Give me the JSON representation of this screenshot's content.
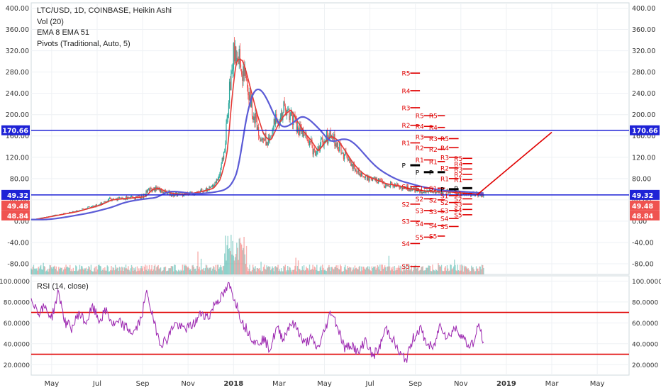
{
  "legend": {
    "symbol": "LTC/USD, 1D, COINBASE, Heikin Ashi",
    "vol": "Vol (20)",
    "ema": "EMA 8 EMA 51",
    "pivots": "Pivots (Traditional, Auto, 5)"
  },
  "rsi_label": "RSI (14, close)",
  "price_badges": {
    "left_blue_top": "170.66",
    "right_blue_top": "170.66",
    "left_blue_mid": "49.32",
    "right_blue_mid": "49.32",
    "left_red_1": "49.48",
    "right_red_1": "49.48",
    "left_red_2": "48.84",
    "right_red_2": "48.84"
  },
  "colors": {
    "up_candle": "#26a69a",
    "down_candle": "#ef5350",
    "ema_fast": "#e53935",
    "ema_slow": "#5b5bd6",
    "pivot_line": "#e00000",
    "pivot_pp": "#000000",
    "horizontal_line": "#1e22d6",
    "rsi_line": "#9c27b0",
    "rsi_band": "#e00000"
  },
  "chart_data": [
    {
      "type": "line",
      "pane": "price",
      "ylim": [
        -100,
        410
      ],
      "y_ticks": [
        "400.00",
        "360.00",
        "320.00",
        "280.00",
        "240.00",
        "200.00",
        "160.00",
        "120.00",
        "80.00",
        "40.00",
        "0.00",
        "-40.00",
        "-80.00"
      ],
      "y_tick_values": [
        400,
        360,
        320,
        280,
        240,
        200,
        160,
        120,
        80,
        40,
        0,
        -40,
        -80
      ],
      "x_ticks": [
        "May",
        "Jul",
        "Sep",
        "Nov",
        "2018",
        "Mar",
        "May",
        "Jul",
        "Sep",
        "Nov",
        "2019",
        "Mar",
        "May"
      ],
      "x_tick_months": [
        4,
        6,
        8,
        10,
        12,
        14,
        16,
        18,
        20,
        22,
        24,
        26,
        28
      ],
      "x_start_month": 3.1,
      "x_end_month": 29.4,
      "series": [
        {
          "values_monthly_approx": [
            [
              3.1,
              3
            ],
            [
              3.5,
              6
            ],
            [
              4,
              10
            ],
            [
              4.5,
              14
            ],
            [
              5,
              18
            ],
            [
              5.5,
              24
            ],
            [
              6,
              30
            ],
            [
              6.5,
              40
            ],
            [
              7,
              42
            ],
            [
              7.5,
              44
            ],
            [
              8,
              46
            ],
            [
              8.3,
              60
            ],
            [
              8.6,
              62
            ],
            [
              8.9,
              55
            ],
            [
              9.2,
              52
            ],
            [
              9.5,
              50
            ],
            [
              10,
              52
            ],
            [
              10.5,
              56
            ],
            [
              11,
              62
            ],
            [
              11.3,
              80
            ],
            [
              11.6,
              130
            ],
            [
              11.8,
              240
            ],
            [
              12,
              310
            ],
            [
              12.3,
              300
            ],
            [
              12.6,
              250
            ],
            [
              12.9,
              200
            ],
            [
              13.2,
              160
            ],
            [
              13.5,
              150
            ],
            [
              13.8,
              180
            ],
            [
              14.1,
              200
            ],
            [
              14.4,
              210
            ],
            [
              14.7,
              185
            ],
            [
              15,
              165
            ],
            [
              15.3,
              150
            ],
            [
              15.6,
              130
            ],
            [
              15.9,
              150
            ],
            [
              16.2,
              160
            ],
            [
              16.5,
              150
            ],
            [
              16.8,
              130
            ],
            [
              17.1,
              110
            ],
            [
              17.4,
              95
            ],
            [
              17.7,
              85
            ],
            [
              18,
              80
            ],
            [
              18.3,
              75
            ],
            [
              18.6,
              70
            ],
            [
              18.9,
              68
            ],
            [
              19.2,
              66
            ],
            [
              19.5,
              62
            ],
            [
              19.8,
              60
            ],
            [
              20.1,
              58
            ],
            [
              20.4,
              56
            ],
            [
              20.7,
              55
            ],
            [
              21,
              56
            ],
            [
              21.3,
              55
            ],
            [
              21.6,
              54
            ],
            [
              21.9,
              53
            ],
            [
              22.2,
              52
            ],
            [
              22.5,
              51
            ],
            [
              22.8,
              50
            ],
            [
              23.0,
              49.5
            ]
          ]
        }
      ],
      "horizontal_lines": [
        170.66,
        49.32
      ],
      "trendline": {
        "from": [
          22.7,
          49
        ],
        "to": [
          26.0,
          167
        ]
      }
    },
    {
      "type": "line",
      "pane": "rsi",
      "ylim": [
        10,
        105
      ],
      "y_ticks": [
        "100.0000",
        "80.0000",
        "60.0000",
        "40.0000",
        "20.0000"
      ],
      "y_tick_values": [
        100,
        80,
        60,
        40,
        20
      ],
      "bands": [
        70,
        30
      ],
      "series": [
        {
          "values_monthly_approx": [
            [
              3.1,
              85
            ],
            [
              3.4,
              70
            ],
            [
              3.7,
              75
            ],
            [
              4.0,
              65
            ],
            [
              4.3,
              90
            ],
            [
              4.6,
              60
            ],
            [
              4.9,
              55
            ],
            [
              5.2,
              70
            ],
            [
              5.5,
              60
            ],
            [
              5.8,
              75
            ],
            [
              6.1,
              62
            ],
            [
              6.4,
              72
            ],
            [
              6.7,
              58
            ],
            [
              7.0,
              60
            ],
            [
              7.3,
              55
            ],
            [
              7.6,
              50
            ],
            [
              7.9,
              62
            ],
            [
              8.2,
              90
            ],
            [
              8.5,
              60
            ],
            [
              8.8,
              40
            ],
            [
              9.1,
              45
            ],
            [
              9.4,
              60
            ],
            [
              9.7,
              55
            ],
            [
              10.0,
              55
            ],
            [
              10.3,
              60
            ],
            [
              10.6,
              70
            ],
            [
              10.9,
              65
            ],
            [
              11.2,
              80
            ],
            [
              11.5,
              85
            ],
            [
              11.8,
              96
            ],
            [
              12.1,
              80
            ],
            [
              12.4,
              60
            ],
            [
              12.7,
              50
            ],
            [
              13.0,
              40
            ],
            [
              13.3,
              45
            ],
            [
              13.6,
              35
            ],
            [
              13.9,
              55
            ],
            [
              14.2,
              45
            ],
            [
              14.5,
              60
            ],
            [
              14.8,
              55
            ],
            [
              15.1,
              40
            ],
            [
              15.4,
              45
            ],
            [
              15.7,
              35
            ],
            [
              16.0,
              52
            ],
            [
              16.3,
              72
            ],
            [
              16.6,
              55
            ],
            [
              16.9,
              35
            ],
            [
              17.2,
              40
            ],
            [
              17.5,
              30
            ],
            [
              17.8,
              45
            ],
            [
              18.1,
              28
            ],
            [
              18.4,
              35
            ],
            [
              18.7,
              55
            ],
            [
              19.0,
              45
            ],
            [
              19.3,
              30
            ],
            [
              19.6,
              25
            ],
            [
              19.9,
              45
            ],
            [
              20.2,
              55
            ],
            [
              20.5,
              40
            ],
            [
              20.8,
              35
            ],
            [
              21.1,
              60
            ],
            [
              21.4,
              45
            ],
            [
              21.7,
              55
            ],
            [
              22.0,
              50
            ],
            [
              22.3,
              38
            ],
            [
              22.6,
              42
            ],
            [
              22.8,
              60
            ],
            [
              23.0,
              38
            ]
          ]
        }
      ]
    }
  ],
  "pivots": {
    "group1": {
      "labels": [
        "R5",
        "R4",
        "R3",
        "R2",
        "R1",
        "P",
        "S1",
        "S2",
        "S3",
        "S4",
        "S5"
      ],
      "values": [
        278,
        245,
        213,
        180,
        147,
        105,
        65,
        32,
        0,
        -42,
        -85
      ]
    },
    "group2": {
      "labels": [
        "R5",
        "R4",
        "R3",
        "R2",
        "R1",
        "P",
        "S1",
        "S2",
        "S3",
        "S4",
        "S5"
      ],
      "values": [
        198,
        178,
        158,
        138,
        115,
        92,
        62,
        42,
        20,
        -5,
        -30
      ]
    },
    "group3": {
      "labels": [
        "R5",
        "R4",
        "R3",
        "R2",
        "R1",
        "P",
        "S1",
        "S2",
        "S3",
        "S4",
        "S5"
      ],
      "values": [
        198,
        176,
        155,
        135,
        112,
        92,
        62,
        40,
        18,
        -8,
        -28
      ]
    },
    "group4": {
      "labels": [
        "R5",
        "R4",
        "R3",
        "R2",
        "R1",
        "P",
        "S1",
        "S2",
        "S3",
        "S4",
        "S5"
      ],
      "values": [
        155,
        138,
        120,
        100,
        80,
        60,
        48,
        35,
        20,
        5,
        -10
      ]
    },
    "group5": {
      "labels": [
        "R5",
        "R4",
        "R3",
        "R2",
        "R1",
        "P",
        "S1",
        "S2",
        "S3",
        "S4",
        "S5"
      ],
      "values": [
        118,
        108,
        98,
        88,
        78,
        62,
        52,
        42,
        32,
        22,
        12
      ]
    }
  }
}
